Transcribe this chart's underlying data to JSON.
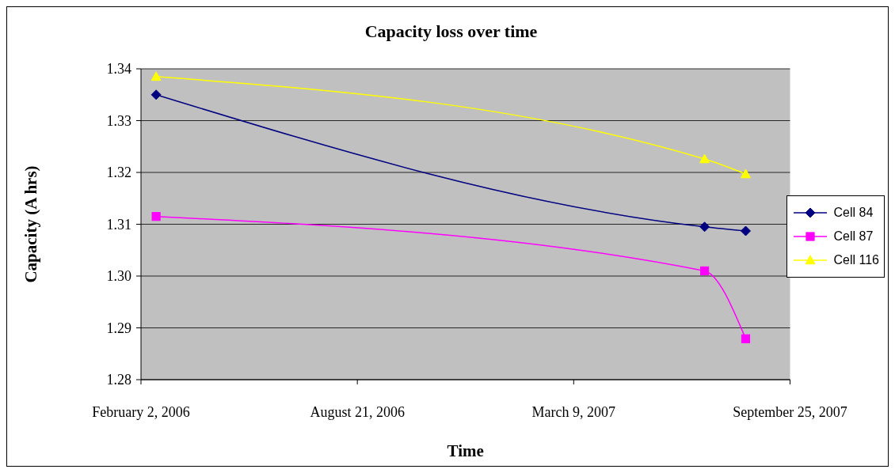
{
  "chart_data": {
    "type": "line",
    "title": "Capacity loss over time",
    "xlabel": "Time",
    "ylabel": "Capacity (A hrs)",
    "x": [
      "2006-02-16",
      "2007-07-08",
      "2007-08-15"
    ],
    "series": [
      {
        "name": "Cell 84",
        "color": "#000080",
        "marker": "diamond",
        "values": [
          1.335,
          1.3095,
          1.3087
        ]
      },
      {
        "name": "Cell 87",
        "color": "#ff00ff",
        "marker": "square",
        "values": [
          1.3115,
          1.301,
          1.2879
        ]
      },
      {
        "name": "Cell 116",
        "color": "#ffff00",
        "marker": "triangle",
        "values": [
          1.3385,
          1.3226,
          1.3197
        ]
      }
    ],
    "xlim": [
      "2006-02-02",
      "2007-09-25"
    ],
    "xticks": [
      {
        "value": "2006-02-02",
        "label": "February 2, 2006"
      },
      {
        "value": "2006-08-21",
        "label": "August 21, 2006"
      },
      {
        "value": "2007-03-09",
        "label": "March 9, 2007"
      },
      {
        "value": "2007-09-25",
        "label": "September 25, 2007"
      }
    ],
    "ylim": [
      1.28,
      1.34
    ],
    "yticks": [
      {
        "value": 1.28,
        "label": "1.28"
      },
      {
        "value": 1.29,
        "label": "1.29"
      },
      {
        "value": 1.3,
        "label": "1.30"
      },
      {
        "value": 1.31,
        "label": "1.31"
      },
      {
        "value": 1.32,
        "label": "1.32"
      },
      {
        "value": 1.33,
        "label": "1.33"
      },
      {
        "value": 1.34,
        "label": "1.34"
      }
    ],
    "grid": "y",
    "legend": "right",
    "line_style": "solid"
  }
}
